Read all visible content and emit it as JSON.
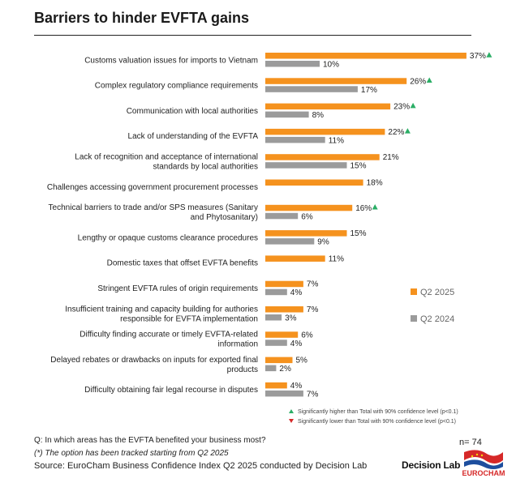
{
  "title": "Barriers to hinder EVFTA gains",
  "chart_data": {
    "type": "bar",
    "orientation": "horizontal",
    "categories": [
      [
        "Customs valuation issues for imports to Vietnam"
      ],
      [
        "Complex regulatory compliance requirements"
      ],
      [
        "Communication with local authorities"
      ],
      [
        "Lack of understanding of the EVFTA"
      ],
      [
        "Lack of recognition and acceptance of international",
        "standards by local authorities"
      ],
      [
        "Challenges accessing government procurement processes"
      ],
      [
        "Technical barriers to trade and/or SPS  measures (Sanitary",
        "and Phytosanitary)"
      ],
      [
        "Lengthy or opaque customs clearance procedures"
      ],
      [
        "Domestic taxes that offset EVFTA benefits"
      ],
      [
        "Stringent EVFTA rules of origin requirements"
      ],
      [
        "Insufficient training and capacity building for authories",
        "responsible for EVFTA implementation"
      ],
      [
        "Difficulty finding accurate or timely EVFTA-related",
        "information"
      ],
      [
        "Delayed rebates or drawbacks on inputs for exported final",
        "products"
      ],
      [
        "Difficulty obtaining fair legal recourse in disputes"
      ]
    ],
    "series": [
      {
        "name": "Q2 2025",
        "color": "#F5921E",
        "values": [
          37,
          26,
          23,
          22,
          21,
          18,
          16,
          15,
          11,
          7,
          7,
          6,
          5,
          4
        ],
        "labels": [
          "37%",
          "26%",
          "23%",
          "22%",
          "21%",
          "18%",
          "16%",
          "15%",
          "11%",
          "7%",
          "7%",
          "6%",
          "5%",
          "4%"
        ],
        "significance": [
          "up",
          "up",
          "up",
          "up",
          null,
          null,
          "up",
          null,
          null,
          null,
          null,
          null,
          null,
          null
        ]
      },
      {
        "name": "Q2 2024",
        "color": "#9B9B9B",
        "values": [
          10,
          17,
          8,
          11,
          15,
          null,
          6,
          9,
          null,
          4,
          3,
          4,
          2,
          7
        ],
        "labels": [
          "10%",
          "17%",
          "8%",
          "11%",
          "15%",
          null,
          "6%",
          "9%",
          null,
          "4%",
          "3%",
          "4%",
          "2%",
          "7%"
        ]
      }
    ],
    "xlim": [
      0,
      37
    ],
    "legend_position": "right",
    "significance_notes": [
      {
        "marker": "▲",
        "color": "#2BAE66",
        "text": "Significantly higher than Total with 90% confidence level (p<0.1)"
      },
      {
        "marker": "▼",
        "color": "#D62828",
        "text": "Significantly lower than Total with 90% confidence level (p<0.1)"
      }
    ]
  },
  "footer": {
    "question": "Q: In which areas has the EVFTA benefited your business most?",
    "tracked_note": "(*) The option has been tracked starting from Q2 2025",
    "source": "Source: EuroCham Business Confidence Index Q2 2025 conducted by Decision Lab",
    "n_count": "n= 74",
    "brand": "Decision Lab",
    "logo_text": "EUROCHAM"
  }
}
